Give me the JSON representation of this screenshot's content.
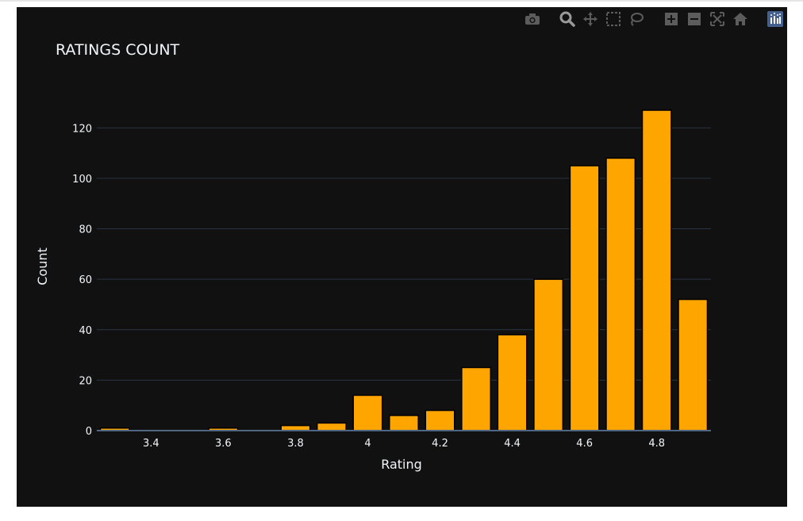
{
  "chart_data": {
    "type": "bar",
    "title": "RATINGS COUNT",
    "xlabel": "Rating",
    "ylabel": "Count",
    "x": [
      3.3,
      3.4,
      3.5,
      3.6,
      3.7,
      3.8,
      3.9,
      4.0,
      4.1,
      4.2,
      4.3,
      4.4,
      4.5,
      4.6,
      4.7,
      4.8,
      4.9
    ],
    "values": [
      1,
      0,
      0,
      1,
      0,
      2,
      3,
      14,
      6,
      8,
      25,
      38,
      60,
      105,
      108,
      127,
      52
    ],
    "xlim": [
      3.25,
      4.95
    ],
    "ylim": [
      0,
      138
    ],
    "xticks": [
      3.4,
      3.6,
      3.8,
      4,
      4.2,
      4.4,
      4.6,
      4.8
    ],
    "xtick_labels": [
      "3.4",
      "3.6",
      "3.8",
      "4",
      "4.2",
      "4.4",
      "4.6",
      "4.8"
    ],
    "yticks": [
      0,
      20,
      40,
      60,
      80,
      100,
      120
    ],
    "grid": true,
    "colors": {
      "bar": "#FFA500",
      "bar_outline": "#000000",
      "background": "#111111",
      "grid": "#283442",
      "text": "#f2f5fa"
    }
  },
  "modebar": {
    "icons": [
      "camera-icon",
      "zoom-icon",
      "pan-icon",
      "box-select-icon",
      "lasso-icon",
      "zoom-in-icon",
      "zoom-out-icon",
      "autoscale-icon",
      "reset-axes-icon",
      "plotly-logo-icon"
    ]
  }
}
